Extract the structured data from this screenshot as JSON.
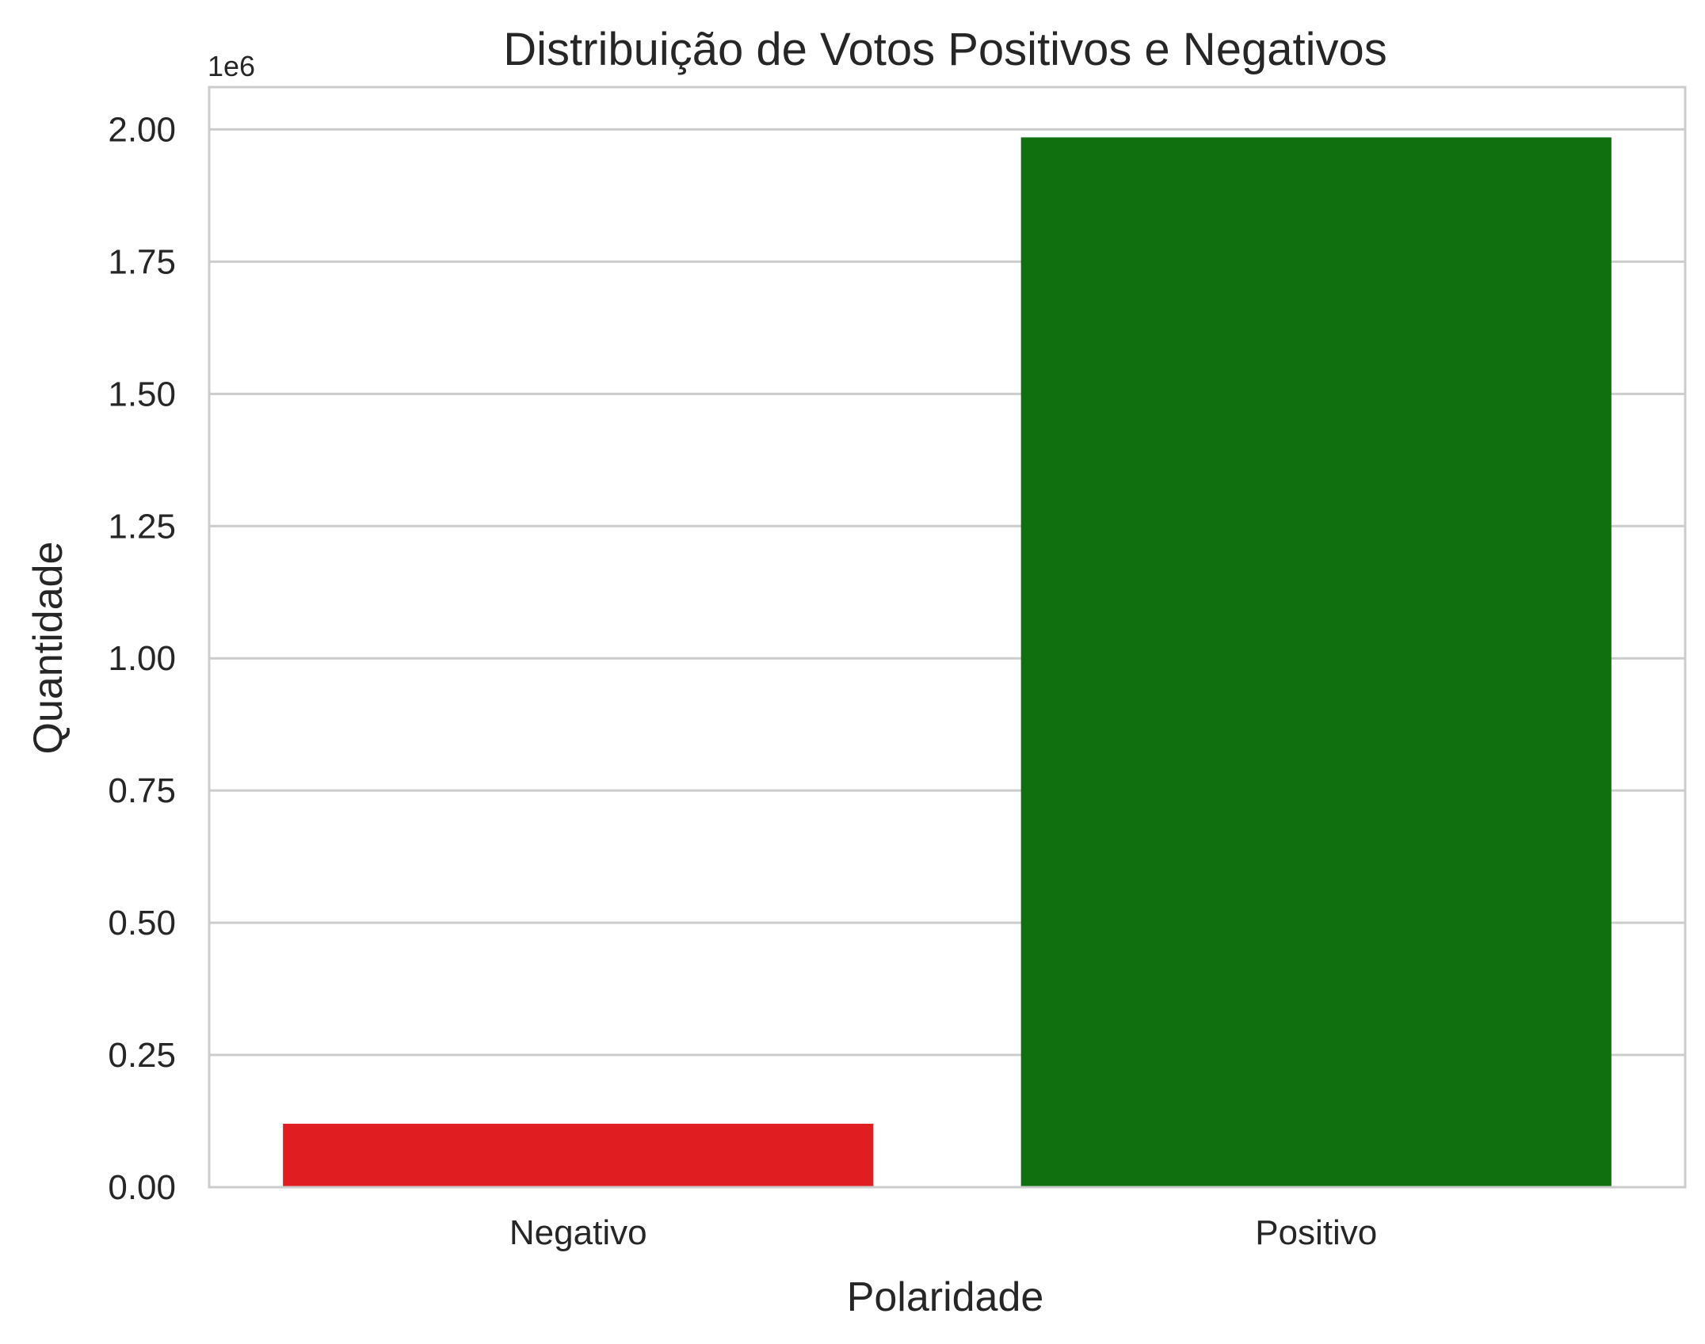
{
  "chart_data": {
    "type": "bar",
    "title": "Distribuição de Votos Positivos e Negativos",
    "xlabel": "Polaridade",
    "ylabel": "Quantidade",
    "categories": [
      "Negativo",
      "Positivo"
    ],
    "values": [
      120000,
      1985000
    ],
    "colors": [
      "#e01e22",
      "#107010"
    ],
    "ylim": [
      0,
      2080000
    ],
    "yticks": [
      0,
      250000,
      500000,
      750000,
      1000000,
      1250000,
      1500000,
      1750000,
      2000000
    ],
    "ytick_labels": [
      "0.00",
      "0.25",
      "0.50",
      "0.75",
      "1.00",
      "1.25",
      "1.50",
      "1.75",
      "2.00"
    ],
    "y_offset_label": "1e6",
    "grid": true
  }
}
